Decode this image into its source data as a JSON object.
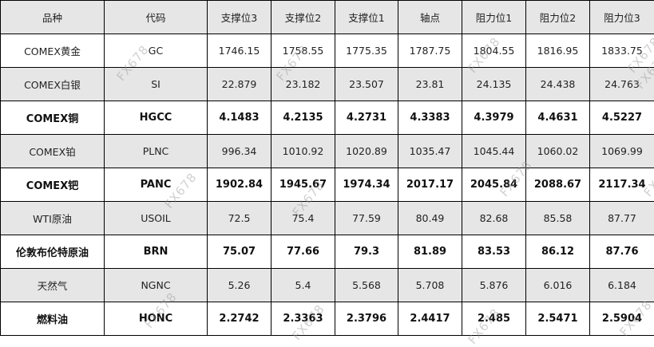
{
  "table": {
    "headers": [
      "品种",
      "代码",
      "支撑位3",
      "支撑位2",
      "支撑位1",
      "轴点",
      "阻力位1",
      "阻力位2",
      "阻力位3"
    ],
    "rows": [
      {
        "cells": [
          "COMEX黄金",
          "GC",
          "1746.15",
          "1758.55",
          "1775.35",
          "1787.75",
          "1804.55",
          "1816.95",
          "1833.75"
        ],
        "bold": false
      },
      {
        "cells": [
          "COMEX白银",
          "SI",
          "22.879",
          "23.182",
          "23.507",
          "23.81",
          "24.135",
          "24.438",
          "24.763"
        ],
        "bold": false
      },
      {
        "cells": [
          "COMEX铜",
          "HGCC",
          "4.1483",
          "4.2135",
          "4.2731",
          "4.3383",
          "4.3979",
          "4.4631",
          "4.5227"
        ],
        "bold": true
      },
      {
        "cells": [
          "COMEX铂",
          "PLNC",
          "996.34",
          "1010.92",
          "1020.89",
          "1035.47",
          "1045.44",
          "1060.02",
          "1069.99"
        ],
        "bold": false
      },
      {
        "cells": [
          "COMEX钯",
          "PANC",
          "1902.84",
          "1945.67",
          "1974.34",
          "2017.17",
          "2045.84",
          "2088.67",
          "2117.34"
        ],
        "bold": true
      },
      {
        "cells": [
          "WTI原油",
          "USOIL",
          "72.5",
          "75.4",
          "77.59",
          "80.49",
          "82.68",
          "85.58",
          "87.77"
        ],
        "bold": false
      },
      {
        "cells": [
          "伦敦布伦特原油",
          "BRN",
          "75.07",
          "77.66",
          "79.3",
          "81.89",
          "83.53",
          "86.12",
          "87.76"
        ],
        "bold": true
      },
      {
        "cells": [
          "天然气",
          "NGNC",
          "5.26",
          "5.4",
          "5.568",
          "5.708",
          "5.876",
          "6.016",
          "6.184"
        ],
        "bold": false
      },
      {
        "cells": [
          "燃料油",
          "HONC",
          "2.2742",
          "2.3363",
          "2.3796",
          "2.4417",
          "2.485",
          "2.5471",
          "2.5904"
        ],
        "bold": true
      }
    ]
  },
  "watermark": "FX678",
  "colors": {
    "header_bg": "#e6e6e6",
    "alt_row_bg": "#e6e6e6",
    "border": "#000000"
  }
}
